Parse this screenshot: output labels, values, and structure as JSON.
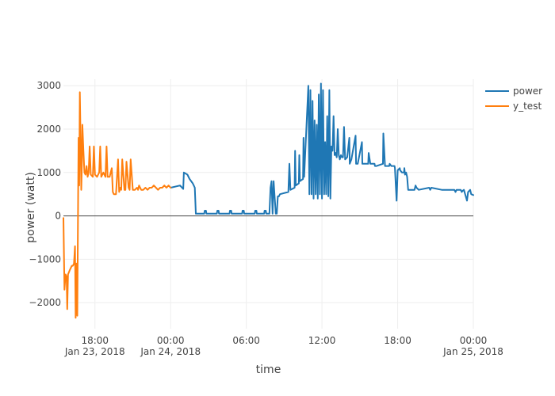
{
  "chart_data": {
    "type": "line",
    "title": "",
    "xlabel": "time",
    "ylabel": "power (watt)",
    "ylim": [
      -2600,
      3150
    ],
    "xlim": [
      "2018-01-23 15:30",
      "2018-01-25 00:00"
    ],
    "grid": true,
    "legend_position": "top-right",
    "x_ticks": [
      {
        "label": "18:00",
        "sublabel": "Jan 23, 2018",
        "t": "2018-01-23 18:00"
      },
      {
        "label": "00:00",
        "sublabel": "Jan 24, 2018",
        "t": "2018-01-24 00:00"
      },
      {
        "label": "06:00",
        "sublabel": "",
        "t": "2018-01-24 06:00"
      },
      {
        "label": "12:00",
        "sublabel": "",
        "t": "2018-01-24 12:00"
      },
      {
        "label": "18:00",
        "sublabel": "",
        "t": "2018-01-24 18:00"
      },
      {
        "label": "00:00",
        "sublabel": "Jan 25, 2018",
        "t": "2018-01-25 00:00"
      }
    ],
    "y_ticks": [
      {
        "label": "3000",
        "v": 3000
      },
      {
        "label": "2000",
        "v": 2000
      },
      {
        "label": "1000",
        "v": 1000
      },
      {
        "label": "0",
        "v": 0
      },
      {
        "label": "−1000",
        "v": -1000
      },
      {
        "label": "−2000",
        "v": -2000
      }
    ],
    "series": [
      {
        "name": "power",
        "color": "#1f77b4",
        "x": [
          "2018-01-24 00:00",
          "2018-01-24 00:45",
          "2018-01-24 01:00",
          "2018-01-24 01:03",
          "2018-01-24 01:20",
          "2018-01-24 01:30",
          "2018-01-24 01:45",
          "2018-01-24 01:50",
          "2018-01-24 01:55",
          "2018-01-24 02:00",
          "2018-01-24 02:40",
          "2018-01-24 02:42",
          "2018-01-24 02:48",
          "2018-01-24 02:50",
          "2018-01-24 03:40",
          "2018-01-24 03:42",
          "2018-01-24 03:48",
          "2018-01-24 03:50",
          "2018-01-24 04:40",
          "2018-01-24 04:42",
          "2018-01-24 04:48",
          "2018-01-24 04:50",
          "2018-01-24 05:40",
          "2018-01-24 05:42",
          "2018-01-24 05:48",
          "2018-01-24 05:50",
          "2018-01-24 06:40",
          "2018-01-24 06:42",
          "2018-01-24 06:48",
          "2018-01-24 06:50",
          "2018-01-24 07:25",
          "2018-01-24 07:27",
          "2018-01-24 07:33",
          "2018-01-24 07:35",
          "2018-01-24 07:50",
          "2018-01-24 07:55",
          "2018-01-24 08:00",
          "2018-01-24 08:05",
          "2018-01-24 08:10",
          "2018-01-24 08:20",
          "2018-01-24 08:25",
          "2018-01-24 08:30",
          "2018-01-24 08:35",
          "2018-01-24 08:40",
          "2018-01-24 09:20",
          "2018-01-24 09:25",
          "2018-01-24 09:30",
          "2018-01-24 09:50",
          "2018-01-24 09:52",
          "2018-01-24 09:55",
          "2018-01-24 10:10",
          "2018-01-24 10:12",
          "2018-01-24 10:15",
          "2018-01-24 10:30",
          "2018-01-24 10:32",
          "2018-01-24 10:35",
          "2018-01-24 10:55",
          "2018-01-24 11:00",
          "2018-01-24 11:05",
          "2018-01-24 11:10",
          "2018-01-24 11:15",
          "2018-01-24 11:20",
          "2018-01-24 11:25",
          "2018-01-24 11:30",
          "2018-01-24 11:35",
          "2018-01-24 11:40",
          "2018-01-24 11:45",
          "2018-01-24 11:50",
          "2018-01-24 11:55",
          "2018-01-24 12:00",
          "2018-01-24 12:05",
          "2018-01-24 12:10",
          "2018-01-24 12:15",
          "2018-01-24 12:20",
          "2018-01-24 12:25",
          "2018-01-24 12:30",
          "2018-01-24 12:35",
          "2018-01-24 12:40",
          "2018-01-24 12:45",
          "2018-01-24 12:50",
          "2018-01-24 12:55",
          "2018-01-24 13:00",
          "2018-01-24 13:05",
          "2018-01-24 13:10",
          "2018-01-24 13:15",
          "2018-01-24 13:20",
          "2018-01-24 13:25",
          "2018-01-24 13:30",
          "2018-01-24 13:35",
          "2018-01-24 13:40",
          "2018-01-24 13:45",
          "2018-01-24 13:50",
          "2018-01-24 14:00",
          "2018-01-24 14:10",
          "2018-01-24 14:12",
          "2018-01-24 14:20",
          "2018-01-24 14:40",
          "2018-01-24 14:42",
          "2018-01-24 14:50",
          "2018-01-24 15:10",
          "2018-01-24 15:12",
          "2018-01-24 15:20",
          "2018-01-24 15:40",
          "2018-01-24 15:42",
          "2018-01-24 15:50",
          "2018-01-24 16:10",
          "2018-01-24 16:12",
          "2018-01-24 16:20",
          "2018-01-24 16:50",
          "2018-01-24 16:52",
          "2018-01-24 17:00",
          "2018-01-24 17:20",
          "2018-01-24 17:22",
          "2018-01-24 17:30",
          "2018-01-24 17:45",
          "2018-01-24 17:47",
          "2018-01-24 17:55",
          "2018-01-24 18:00",
          "2018-01-24 18:10",
          "2018-01-24 18:12",
          "2018-01-24 18:20",
          "2018-01-24 18:30",
          "2018-01-24 18:32",
          "2018-01-24 18:35",
          "2018-01-24 18:40",
          "2018-01-24 18:45",
          "2018-01-24 18:50",
          "2018-01-24 19:00",
          "2018-01-24 19:10",
          "2018-01-24 19:20",
          "2018-01-24 19:25",
          "2018-01-24 19:30",
          "2018-01-24 19:40",
          "2018-01-24 20:30",
          "2018-01-24 20:35",
          "2018-01-24 20:40",
          "2018-01-24 21:30",
          "2018-01-24 21:35",
          "2018-01-24 21:40",
          "2018-01-24 22:30",
          "2018-01-24 22:35",
          "2018-01-24 22:40",
          "2018-01-24 23:00",
          "2018-01-24 23:05",
          "2018-01-24 23:10",
          "2018-01-24 23:15",
          "2018-01-24 23:30",
          "2018-01-24 23:35",
          "2018-01-24 23:45",
          "2018-01-24 23:50",
          "2018-01-25 00:00"
        ],
        "y": [
          650,
          700,
          620,
          1000,
          950,
          850,
          750,
          700,
          650,
          50,
          50,
          120,
          120,
          50,
          50,
          120,
          120,
          50,
          50,
          120,
          120,
          50,
          50,
          120,
          120,
          50,
          50,
          120,
          120,
          50,
          50,
          120,
          120,
          50,
          50,
          650,
          800,
          50,
          800,
          50,
          50,
          450,
          450,
          500,
          550,
          1200,
          600,
          650,
          1500,
          700,
          750,
          1400,
          800,
          850,
          1800,
          900,
          3000,
          500,
          2900,
          500,
          2650,
          400,
          2200,
          500,
          2100,
          400,
          2800,
          500,
          3050,
          400,
          2900,
          500,
          1700,
          500,
          2300,
          450,
          2900,
          400,
          1600,
          1500,
          2300,
          1400,
          1450,
          1350,
          2000,
          1400,
          1300,
          1400,
          1350,
          1350,
          2050,
          1300,
          1350,
          1800,
          1200,
          1300,
          1850,
          1200,
          1200,
          1700,
          1200,
          1200,
          1200,
          1450,
          1200,
          1200,
          1150,
          1150,
          1200,
          1900,
          1150,
          1150,
          1200,
          1150,
          1150,
          1100,
          350,
          1050,
          1100,
          1050,
          1000,
          1000,
          1100,
          950,
          1000,
          900,
          600,
          600,
          600,
          600,
          700,
          650,
          600,
          650,
          600,
          650,
          600,
          600,
          600,
          600,
          550,
          600,
          600,
          550,
          580,
          600,
          350,
          550,
          600,
          500,
          480
        ]
      },
      {
        "name": "y_test",
        "color": "#ff7f0e",
        "x": [
          "2018-01-23 15:30",
          "2018-01-23 15:35",
          "2018-01-23 15:40",
          "2018-01-23 15:45",
          "2018-01-23 15:48",
          "2018-01-23 15:52",
          "2018-01-23 15:56",
          "2018-01-23 16:00",
          "2018-01-23 16:05",
          "2018-01-23 16:10",
          "2018-01-23 16:15",
          "2018-01-23 16:20",
          "2018-01-23 16:25",
          "2018-01-23 16:28",
          "2018-01-23 16:32",
          "2018-01-23 16:36",
          "2018-01-23 16:40",
          "2018-01-23 16:42",
          "2018-01-23 16:45",
          "2018-01-23 16:48",
          "2018-01-23 16:52",
          "2018-01-23 16:55",
          "2018-01-23 16:58",
          "2018-01-23 17:00",
          "2018-01-23 17:05",
          "2018-01-23 17:10",
          "2018-01-23 17:15",
          "2018-01-23 17:20",
          "2018-01-23 17:25",
          "2018-01-23 17:30",
          "2018-01-23 17:35",
          "2018-01-23 17:40",
          "2018-01-23 17:50",
          "2018-01-23 17:55",
          "2018-01-23 18:00",
          "2018-01-23 18:10",
          "2018-01-23 18:20",
          "2018-01-23 18:25",
          "2018-01-23 18:30",
          "2018-01-23 18:40",
          "2018-01-23 18:50",
          "2018-01-23 18:55",
          "2018-01-23 19:00",
          "2018-01-23 19:10",
          "2018-01-23 19:20",
          "2018-01-23 19:25",
          "2018-01-23 19:30",
          "2018-01-23 19:40",
          "2018-01-23 19:50",
          "2018-01-23 19:55",
          "2018-01-23 20:00",
          "2018-01-23 20:05",
          "2018-01-23 20:10",
          "2018-01-23 20:20",
          "2018-01-23 20:25",
          "2018-01-23 20:30",
          "2018-01-23 20:40",
          "2018-01-23 20:45",
          "2018-01-23 20:50",
          "2018-01-23 21:00",
          "2018-01-23 21:05",
          "2018-01-23 21:10",
          "2018-01-23 21:20",
          "2018-01-23 21:25",
          "2018-01-23 21:30",
          "2018-01-23 21:40",
          "2018-01-23 21:50",
          "2018-01-23 22:00",
          "2018-01-23 22:10",
          "2018-01-23 22:20",
          "2018-01-23 22:30",
          "2018-01-23 22:40",
          "2018-01-23 22:50",
          "2018-01-23 23:00",
          "2018-01-23 23:10",
          "2018-01-23 23:20",
          "2018-01-23 23:30",
          "2018-01-23 23:40",
          "2018-01-23 23:50",
          "2018-01-24 00:00"
        ],
        "y": [
          -50,
          -1700,
          -1350,
          -1400,
          -2150,
          -1350,
          -1300,
          -1250,
          -1200,
          -1150,
          -1150,
          -1100,
          -700,
          -2350,
          -1100,
          -2300,
          600,
          1800,
          700,
          2850,
          1700,
          600,
          1200,
          2100,
          1500,
          1000,
          950,
          1150,
          900,
          1000,
          1600,
          950,
          900,
          1600,
          950,
          900,
          1000,
          1600,
          900,
          1000,
          900,
          1600,
          900,
          900,
          1100,
          550,
          500,
          500,
          1300,
          550,
          650,
          600,
          1300,
          600,
          600,
          1250,
          650,
          600,
          1300,
          600,
          600,
          600,
          650,
          600,
          700,
          600,
          600,
          650,
          600,
          650,
          650,
          700,
          650,
          600,
          650,
          650,
          700,
          650,
          700,
          650
        ]
      }
    ]
  }
}
